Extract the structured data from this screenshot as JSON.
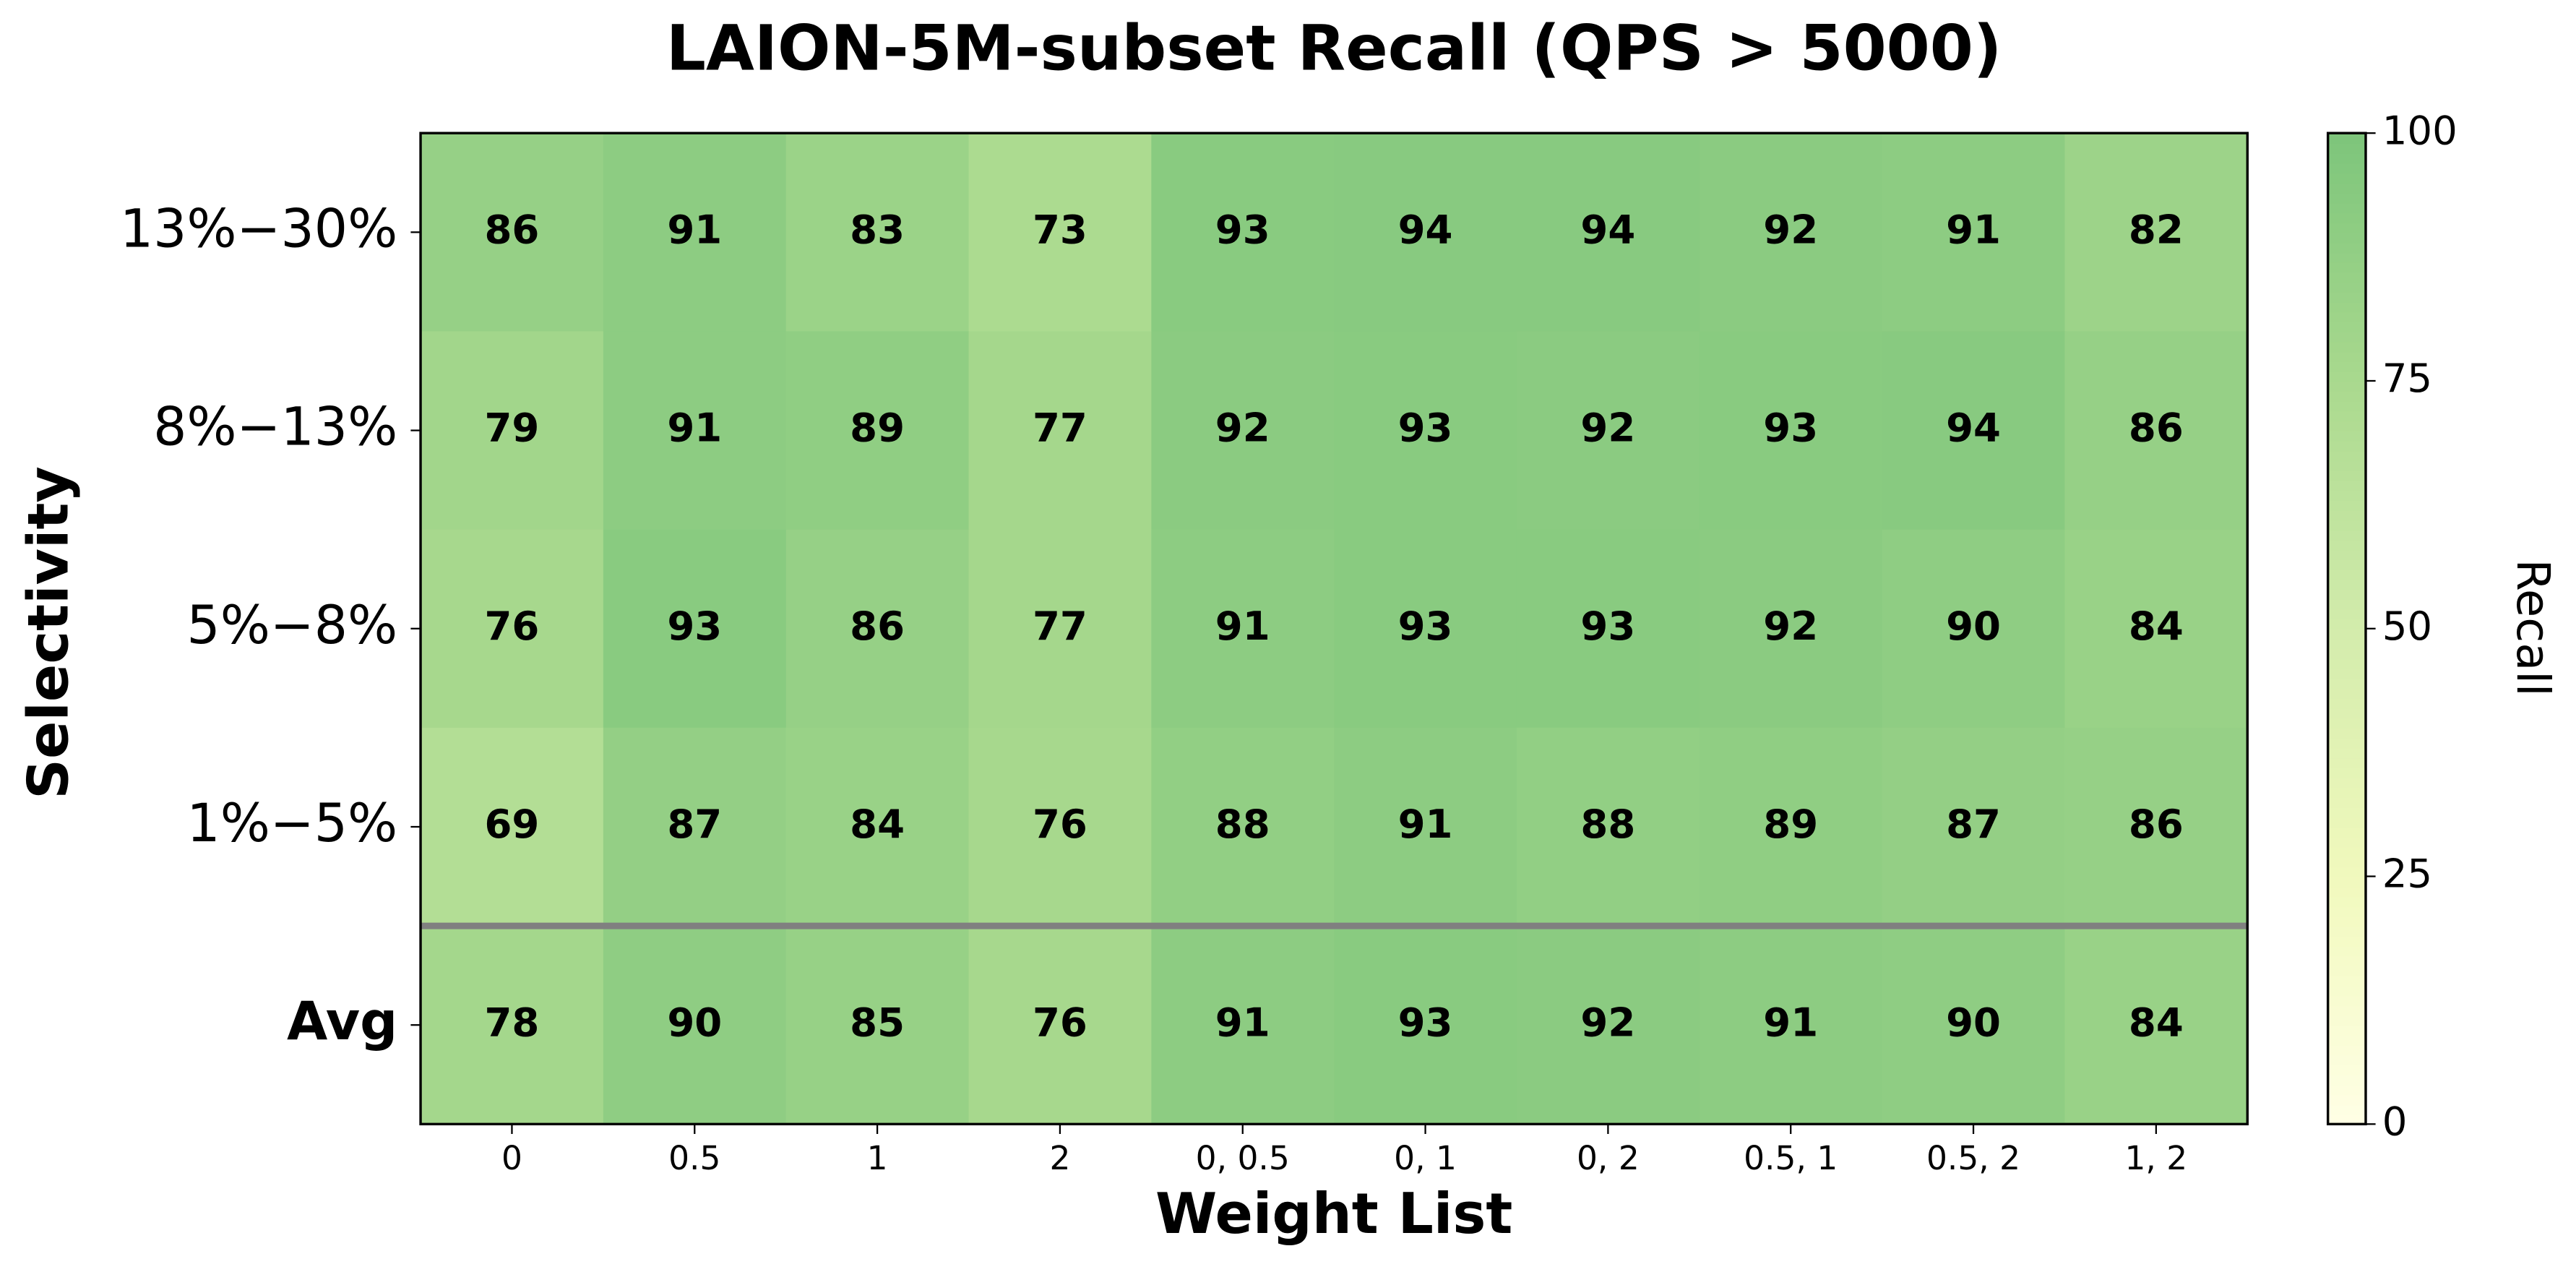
{
  "chart_data": {
    "type": "heatmap",
    "title": "LAION-5M-subset Recall (QPS > 5000)",
    "x_label": "Weight List",
    "y_label": "Selectivity",
    "categories": [
      "0",
      "0.5",
      "1",
      "2",
      "0, 0.5",
      "0, 1",
      "0, 2",
      "0.5, 1",
      "0.5, 2",
      "1, 2"
    ],
    "rows": [
      "13%−30%",
      "8%−13%",
      "5%−8%",
      "1%−5%",
      "Avg"
    ],
    "values": [
      [
        86,
        91,
        83,
        73,
        93,
        94,
        94,
        92,
        91,
        82
      ],
      [
        79,
        91,
        89,
        77,
        92,
        93,
        92,
        93,
        94,
        86
      ],
      [
        76,
        93,
        86,
        77,
        91,
        93,
        93,
        92,
        90,
        84
      ],
      [
        69,
        87,
        84,
        76,
        88,
        91,
        88,
        89,
        87,
        86
      ],
      [
        78,
        90,
        85,
        76,
        91,
        93,
        92,
        91,
        90,
        84
      ]
    ],
    "colorbar_label": "Recall",
    "clim": [
      0,
      100
    ],
    "cticks": [
      0,
      25,
      50,
      75,
      100
    ],
    "colormap": [
      "#ffffe5",
      "#f1f9bd",
      "#d3ecac",
      "#a9d98e",
      "#7dc57b"
    ]
  }
}
